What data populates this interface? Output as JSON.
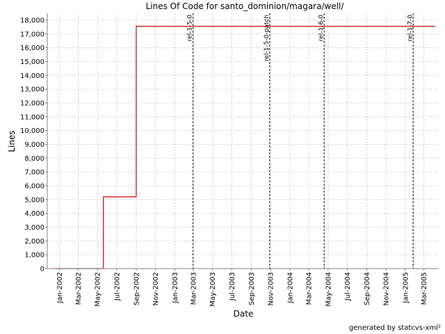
{
  "chart_data": {
    "type": "line",
    "title": "Lines Of Code for santo_dominion/magara/well/",
    "xlabel": "Date",
    "ylabel": "Lines",
    "ylim": [
      0,
      18500
    ],
    "yticks": [
      0,
      1000,
      2000,
      3000,
      4000,
      5000,
      6000,
      7000,
      8000,
      9000,
      10000,
      11000,
      12000,
      13000,
      14000,
      15000,
      16000,
      17000,
      18000
    ],
    "ytick_labels": [
      "0",
      "1,000",
      "2,000",
      "3,000",
      "4,000",
      "5,000",
      "6,000",
      "7,000",
      "8,000",
      "9,000",
      "10,000",
      "11,000",
      "12,000",
      "13,000",
      "14,000",
      "15,000",
      "16,000",
      "17,000",
      "18,000"
    ],
    "xlim": [
      "2001-11-23",
      "2005-04-17"
    ],
    "xticks": [
      "2002-01-01",
      "2002-03-01",
      "2002-05-01",
      "2002-07-01",
      "2002-09-01",
      "2002-11-01",
      "2003-01-01",
      "2003-03-01",
      "2003-05-01",
      "2003-07-01",
      "2003-09-01",
      "2003-11-01",
      "2004-01-01",
      "2004-03-01",
      "2004-05-01",
      "2004-07-01",
      "2004-09-01",
      "2004-11-01",
      "2005-01-01",
      "2005-03-01"
    ],
    "xtick_labels": [
      "Jan-2002",
      "Mar-2002",
      "May-2002",
      "Jul-2002",
      "Sep-2002",
      "Nov-2002",
      "Jan-2003",
      "Mar-2003",
      "May-2003",
      "Jul-2003",
      "Sep-2003",
      "Nov-2003",
      "Jan-2004",
      "Mar-2004",
      "May-2004",
      "Jul-2004",
      "Sep-2004",
      "Nov-2004",
      "Jan-2005",
      "Mar-2005"
    ],
    "grid": true,
    "series": [
      {
        "step": true,
        "color": "#cc0000",
        "points": [
          {
            "x": "2001-12-18",
            "y": 0
          },
          {
            "x": "2002-05-20",
            "y": 5200
          },
          {
            "x": "2002-09-01",
            "y": 17550
          },
          {
            "x": "2005-04-06",
            "y": 17550
          }
        ]
      }
    ],
    "markers": [
      {
        "x": "2003-02-28",
        "label": "rel-1-5-0"
      },
      {
        "x": "2003-10-29",
        "label": "rel-1-5-0-patch"
      },
      {
        "x": "2004-04-19",
        "label": "rel-1-6-0"
      },
      {
        "x": "2005-01-26",
        "label": "rel-1-7-0"
      }
    ]
  },
  "footer": "generated by statcvs-xml²",
  "colors": {
    "line": "#cc0000",
    "marker": "#555555",
    "grid": "#d0d0d0"
  }
}
